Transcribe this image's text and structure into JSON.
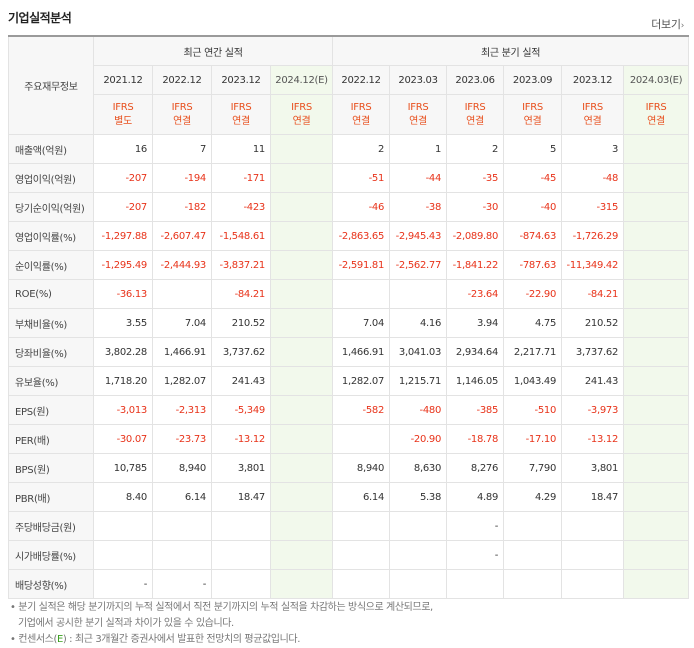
{
  "title": "기업실적분석",
  "more_label": "더보기",
  "corner_label": "주요재무정보",
  "groups": {
    "annual": "최근 연간 실적",
    "quarter": "최근 분기 실적"
  },
  "columns": [
    {
      "date": "2021.12",
      "ifrs": "IFRS",
      "basis": "별도",
      "est": false
    },
    {
      "date": "2022.12",
      "ifrs": "IFRS",
      "basis": "연결",
      "est": false
    },
    {
      "date": "2023.12",
      "ifrs": "IFRS",
      "basis": "연결",
      "est": false
    },
    {
      "date": "2024.12(E)",
      "ifrs": "IFRS",
      "basis": "연결",
      "est": true
    },
    {
      "date": "2022.12",
      "ifrs": "IFRS",
      "basis": "연결",
      "est": false
    },
    {
      "date": "2023.03",
      "ifrs": "IFRS",
      "basis": "연결",
      "est": false
    },
    {
      "date": "2023.06",
      "ifrs": "IFRS",
      "basis": "연결",
      "est": false
    },
    {
      "date": "2023.09",
      "ifrs": "IFRS",
      "basis": "연결",
      "est": false
    },
    {
      "date": "2023.12",
      "ifrs": "IFRS",
      "basis": "연결",
      "est": false
    },
    {
      "date": "2024.03(E)",
      "ifrs": "IFRS",
      "basis": "연결",
      "est": true
    }
  ],
  "rows": [
    {
      "label": "매출액(억원)",
      "values": [
        "16",
        "7",
        "11",
        "",
        "2",
        "1",
        "2",
        "5",
        "3",
        ""
      ]
    },
    {
      "label": "영업이익(억원)",
      "values": [
        "-207",
        "-194",
        "-171",
        "",
        "-51",
        "-44",
        "-35",
        "-45",
        "-48",
        ""
      ]
    },
    {
      "label": "당기순이익(억원)",
      "values": [
        "-207",
        "-182",
        "-423",
        "",
        "-46",
        "-38",
        "-30",
        "-40",
        "-315",
        ""
      ]
    },
    {
      "label": "영업이익률(%)",
      "sep": true,
      "values": [
        "-1,297.88",
        "-2,607.47",
        "-1,548.61",
        "",
        "-2,863.65",
        "-2,945.43",
        "-2,089.80",
        "-874.63",
        "-1,726.29",
        ""
      ]
    },
    {
      "label": "순이익률(%)",
      "values": [
        "-1,295.49",
        "-2,444.93",
        "-3,837.21",
        "",
        "-2,591.81",
        "-2,562.77",
        "-1,841.22",
        "-787.63",
        "-11,349.42",
        ""
      ]
    },
    {
      "label": "ROE(%)",
      "values": [
        "-36.13",
        "",
        "-84.21",
        "",
        "",
        "",
        "-23.64",
        "-22.90",
        "-84.21",
        ""
      ]
    },
    {
      "label": "부채비율(%)",
      "sep": true,
      "values": [
        "3.55",
        "7.04",
        "210.52",
        "",
        "7.04",
        "4.16",
        "3.94",
        "4.75",
        "210.52",
        ""
      ]
    },
    {
      "label": "당좌비율(%)",
      "values": [
        "3,802.28",
        "1,466.91",
        "3,737.62",
        "",
        "1,466.91",
        "3,041.03",
        "2,934.64",
        "2,217.71",
        "3,737.62",
        ""
      ]
    },
    {
      "label": "유보율(%)",
      "values": [
        "1,718.20",
        "1,282.07",
        "241.43",
        "",
        "1,282.07",
        "1,215.71",
        "1,146.05",
        "1,043.49",
        "241.43",
        ""
      ]
    },
    {
      "label": "EPS(원)",
      "sep": true,
      "values": [
        "-3,013",
        "-2,313",
        "-5,349",
        "",
        "-582",
        "-480",
        "-385",
        "-510",
        "-3,973",
        ""
      ]
    },
    {
      "label": "PER(배)",
      "values": [
        "-30.07",
        "-23.73",
        "-13.12",
        "",
        "",
        "-20.90",
        "-18.78",
        "-17.10",
        "-13.12",
        ""
      ]
    },
    {
      "label": "BPS(원)",
      "values": [
        "10,785",
        "8,940",
        "3,801",
        "",
        "8,940",
        "8,630",
        "8,276",
        "7,790",
        "3,801",
        ""
      ]
    },
    {
      "label": "PBR(배)",
      "values": [
        "8.40",
        "6.14",
        "18.47",
        "",
        "6.14",
        "5.38",
        "4.89",
        "4.29",
        "18.47",
        ""
      ]
    },
    {
      "label": "주당배당금(원)",
      "sep": true,
      "values": [
        "",
        "",
        "",
        "",
        "",
        "",
        "-",
        "",
        "",
        ""
      ]
    },
    {
      "label": "시가배당률(%)",
      "values": [
        "",
        "",
        "",
        "",
        "",
        "",
        "-",
        "",
        "",
        ""
      ]
    },
    {
      "label": "배당성향(%)",
      "values": [
        "-",
        "-",
        "",
        "",
        "",
        "",
        "",
        "",
        "",
        ""
      ]
    }
  ],
  "notes": {
    "line1": "분기 실적은 해당 분기까지의 누적 실적에서 직전 분기까지의 누적 실적을 차감하는 방식으로 계산되므로,",
    "line2": "기업에서 공시한 분기 실적과 차이가 있을 수 있습니다.",
    "line3_prefix": "컨센서스(",
    "line3_e": "E",
    "line3_suffix": ") : 최근 3개월간 증권사에서 발표한 전망치의 평균값입니다."
  }
}
